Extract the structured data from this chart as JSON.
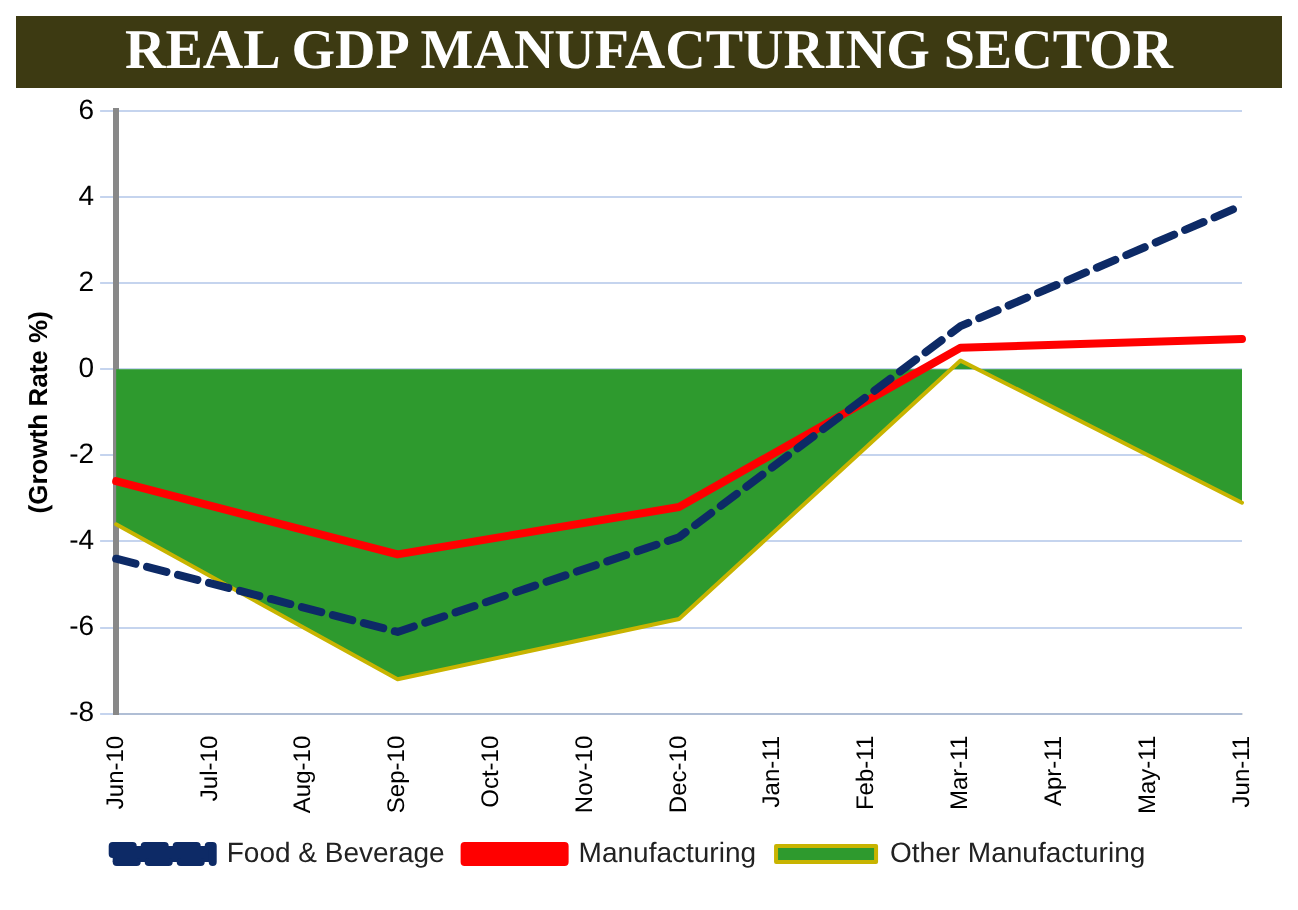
{
  "chart_data": {
    "type": "line",
    "title": "REAL GDP MANUFACTURING SECTOR",
    "ylabel": "(Growth Rate %)",
    "categories": [
      "Jun-10",
      "Jul-10",
      "Aug-10",
      "Sep-10",
      "Oct-10",
      "Nov-10",
      "Dec-10",
      "Jan-11",
      "Feb-11",
      "Mar-11",
      "Apr-11",
      "May-11",
      "Jun-11"
    ],
    "series": [
      {
        "name": "Other Manufacturing",
        "type": "area",
        "color": "#2e9a2e",
        "values": [
          -3.6,
          null,
          null,
          -7.2,
          null,
          null,
          -5.8,
          null,
          null,
          0.2,
          null,
          null,
          -3.1
        ]
      },
      {
        "name": "Food & Beverage",
        "type": "line",
        "line_style": "dashed",
        "color": "#0d2a66",
        "values": [
          -4.4,
          null,
          null,
          -6.1,
          null,
          null,
          -3.9,
          null,
          null,
          1.0,
          null,
          null,
          3.8
        ]
      },
      {
        "name": "Manufacturing",
        "type": "line",
        "line_style": "solid",
        "color": "#ff0000",
        "values": [
          -2.6,
          null,
          null,
          -4.3,
          null,
          null,
          -3.2,
          null,
          null,
          0.5,
          null,
          null,
          0.7
        ]
      }
    ],
    "ylim": [
      -8,
      6
    ],
    "yticks": [
      -8,
      -6,
      -4,
      -2,
      0,
      2,
      4,
      6
    ],
    "grid": "y",
    "legend": "bottom",
    "marker": "none"
  }
}
